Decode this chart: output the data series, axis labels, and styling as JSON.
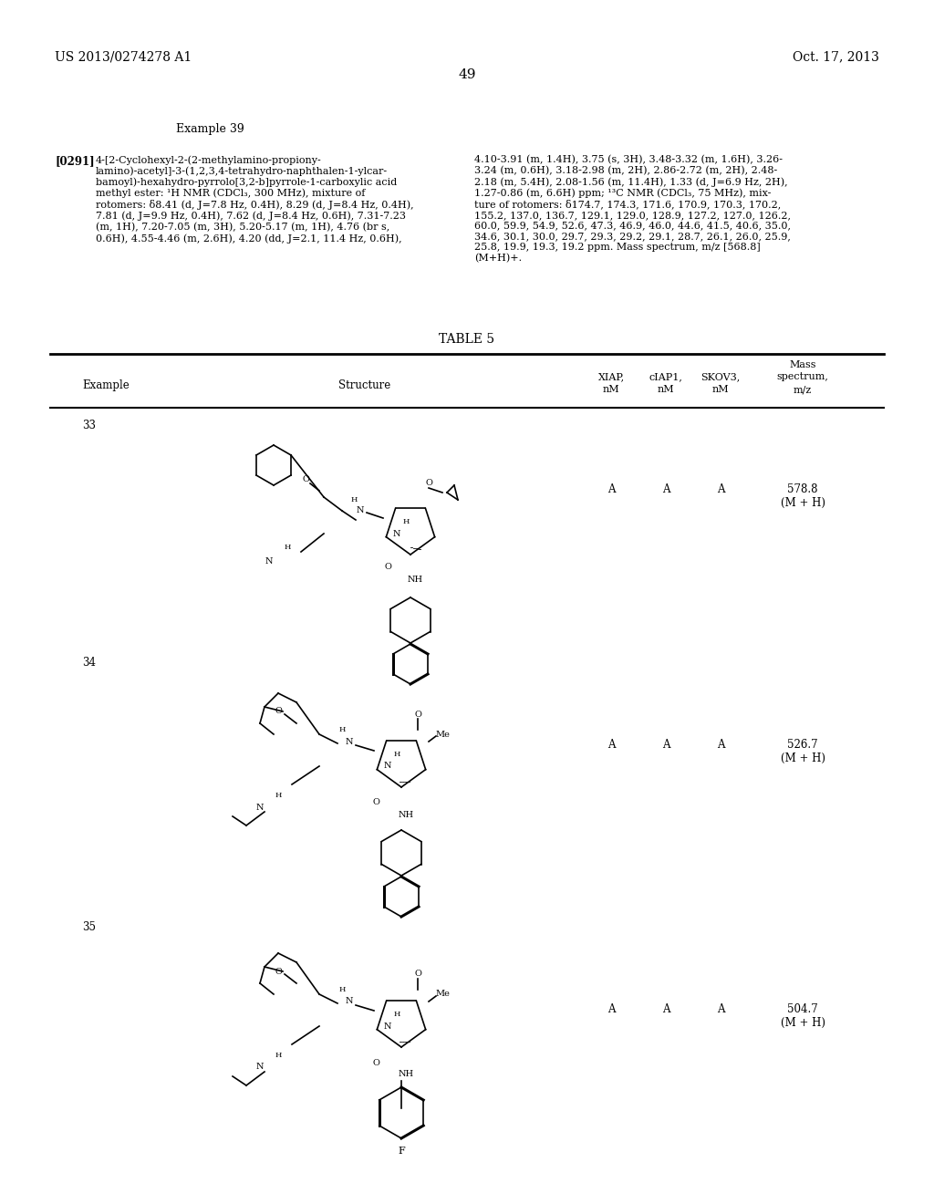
{
  "page_number": "49",
  "patent_left": "US 2013/0274278 A1",
  "patent_right": "Oct. 17, 2013",
  "background_color": "#ffffff",
  "header_text_left": "US 2013/0274278 A1",
  "header_text_right": "Oct. 17, 2013",
  "example_label": "Example 39",
  "paragraph_label": "[0291]",
  "paragraph_text_col1": "4-[2-Cyclohexyl-2-(2-methylamino-propiony-\nlamino)-acetyl]-3-(1,2,3,4-tetrahydro-naphthalen-1-ylcar-\nbamoyl)-hexahydro-pyrrolo[3,2-b]pyrrole-1-carboxylic acid\nmethyl ester: ¹H NMR (CDCl₃, 300 MHz), mixture of\nrotomers: δ8.41 (d, J=7.8 Hz, 0.4H), 8.29 (d, J=8.4 Hz, 0.4H),\n7.81 (d, J=9.9 Hz, 0.4H), 7.62 (d, J=8.4 Hz, 0.6H), 7.31-7.23\n(m, 1H), 7.20-7.05 (m, 3H), 5.20-5.17 (m, 1H), 4.76 (br s,\n0.6H), 4.55-4.46 (m, 2.6H), 4.20 (dd, J=2.1, 11.4 Hz, 0.6H),",
  "paragraph_text_col2": "4.10-3.91 (m, 1.4H), 3.75 (s, 3H), 3.48-3.32 (m, 1.6H), 3.26-\n3.24 (m, 0.6H), 3.18-2.98 (m, 2H), 2.86-2.72 (m, 2H), 2.48-\n2.18 (m, 5.4H), 2.08-1.56 (m, 11.4H), 1.33 (d, J=6.9 Hz, 2H),\n1.27-0.86 (m, 6.6H) ppm; ¹³C NMR (CDCl₃, 75 MHz), mix-\nture of rotomers: δ174.7, 174.3, 171.6, 170.9, 170.3, 170.2,\n155.2, 137.0, 136.7, 129.1, 129.0, 128.9, 127.2, 127.0, 126.2,\n60.0, 59.9, 54.9, 52.6, 47.3, 46.9, 46.0, 44.6, 41.5, 40.6, 35.0,\n34.6, 30.1, 30.0, 29.7, 29.3, 29.2, 29.1, 28.7, 26.1, 26.0, 25.9,\n25.8, 19.9, 19.3, 19.2 ppm. Mass spectrum, m/z [568.8]\n(M+H)+.",
  "table_title": "TABLE 5",
  "table_col_headers": [
    "Example",
    "Structure",
    "XIAP,\nnM",
    "cIAP1,\nnM",
    "SKOV3,\nnM",
    "Mass\nspectrum,\nm/z"
  ],
  "table_rows": [
    {
      "example": "33",
      "xiap": "A",
      "ciap1": "A",
      "skov3": "A",
      "mass": "578.8\n(M + H)"
    },
    {
      "example": "34",
      "xiap": "A",
      "ciap1": "A",
      "skov3": "A",
      "mass": "526.7\n(M + H)"
    },
    {
      "example": "35",
      "xiap": "A",
      "ciap1": "A",
      "skov3": "A",
      "mass": "504.7\n(M + H)"
    }
  ]
}
